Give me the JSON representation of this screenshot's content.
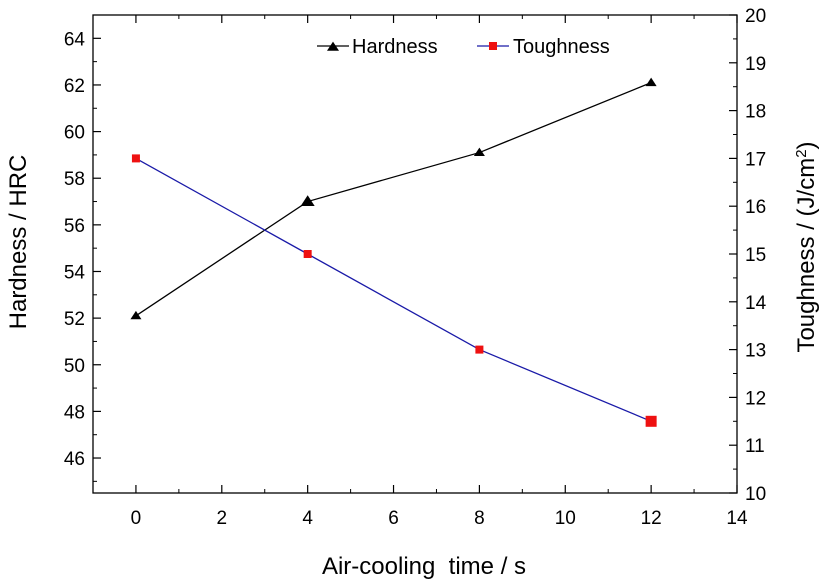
{
  "chart_data": {
    "type": "line",
    "xlabel": "Air-cooling  time / s",
    "ylabel_left": "Hardness / HRC",
    "ylabel_right_main": "Toughness / (J/cm",
    "ylabel_right_sup": "2",
    "ylabel_right_close": ")",
    "xlim": [
      -1,
      14
    ],
    "ylim_left": [
      44.5,
      65
    ],
    "ylim_right": [
      10,
      20
    ],
    "x_ticks": [
      0,
      2,
      4,
      6,
      8,
      10,
      12,
      14
    ],
    "y_left_ticks": [
      46,
      48,
      50,
      52,
      54,
      56,
      58,
      60,
      62,
      64
    ],
    "y_right_ticks": [
      10,
      11,
      12,
      13,
      14,
      15,
      16,
      17,
      18,
      19,
      20
    ],
    "grid": false,
    "legend_position": "top",
    "series": [
      {
        "name": "Hardness",
        "axis": "left",
        "color": "#000000",
        "marker": "triangle",
        "x": [
          0,
          4,
          8,
          12
        ],
        "y": [
          52.1,
          57.0,
          59.1,
          62.1
        ]
      },
      {
        "name": "Toughness",
        "axis": "right",
        "color": "#1a1aa8",
        "marker_color": "#ee1111",
        "marker": "square",
        "x": [
          0,
          4,
          8,
          12
        ],
        "y": [
          17.0,
          15.0,
          13.0,
          11.5
        ]
      }
    ]
  }
}
